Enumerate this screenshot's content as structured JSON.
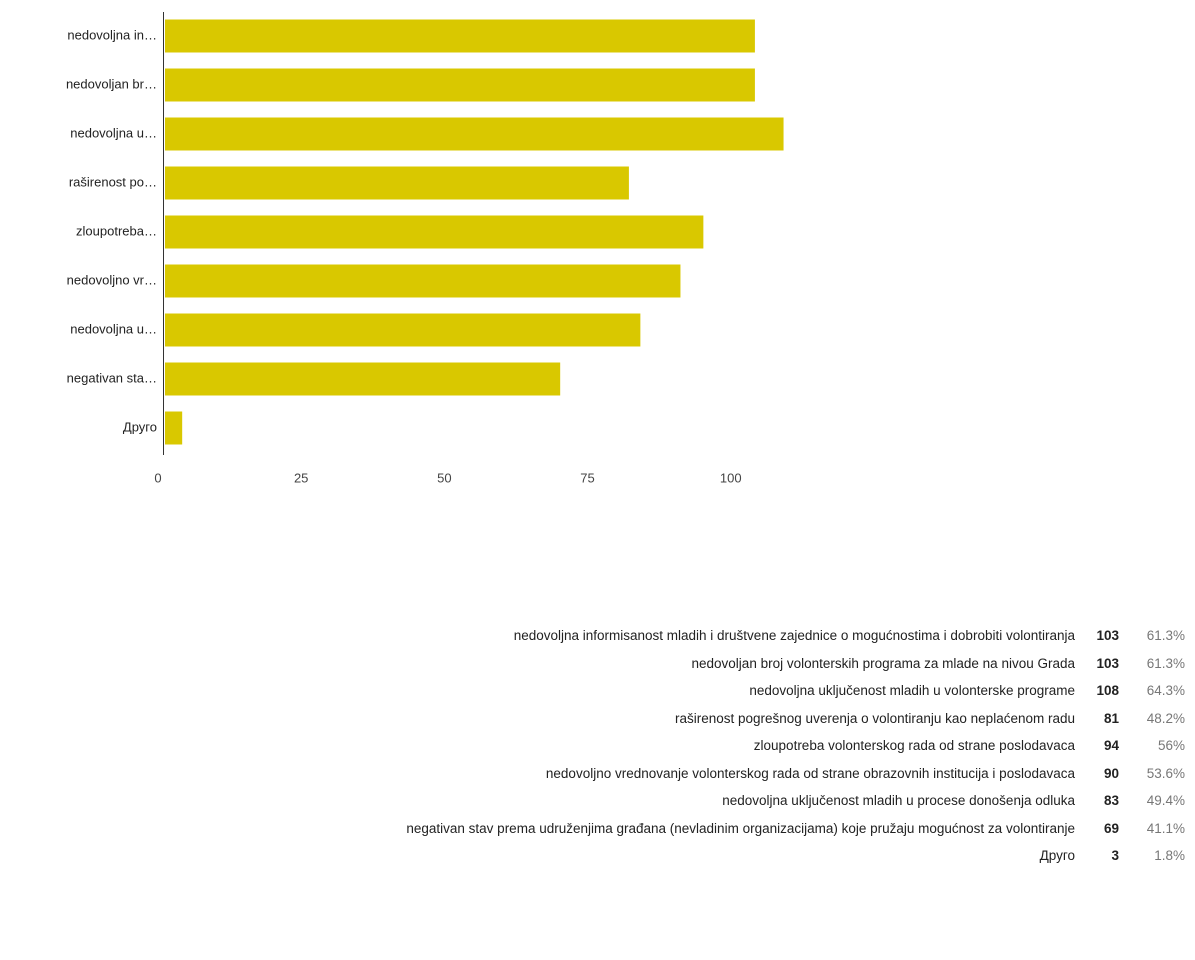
{
  "chart_data": {
    "type": "bar",
    "orientation": "horizontal",
    "color": "#d9c800",
    "categories": [
      "nedovoljna in…",
      "nedovoljan br…",
      "nedovoljna u…",
      "raširenost po…",
      "zloupotreba…",
      "nedovoljno vr…",
      "nedovoljna u…",
      "negativan sta…",
      "Друго"
    ],
    "values": [
      103,
      103,
      108,
      81,
      94,
      90,
      83,
      69,
      3
    ],
    "xlim": [
      0,
      110
    ],
    "xticks": [
      0,
      25,
      50,
      75,
      100
    ]
  },
  "table": {
    "rows": [
      [
        "nedovoljna informisanost mladih i društvene zajednice o mogućnostima i dobrobiti volontiranja",
        103,
        "61.3%"
      ],
      [
        "nedovoljan broj volonterskih programa za mlade na nivou Grada",
        103,
        "61.3%"
      ],
      [
        "nedovoljna uključenost mladih u volonterske programe",
        108,
        "64.3%"
      ],
      [
        "raširenost pogrešnog uverenja o volontiranju kao neplaćenom radu",
        81,
        "48.2%"
      ],
      [
        "zloupotreba volonterskog rada od strane poslodavaca",
        94,
        "56%"
      ],
      [
        "nedovoljno vrednovanje volonterskog rada od strane obrazovnih institucija i poslodavaca",
        90,
        "53.6%"
      ],
      [
        "nedovoljna uključenost mladih u procese donošenja odluka",
        83,
        "49.4%"
      ],
      [
        "negativan stav prema udruženjima građana (nevladinim organizacijama) koje pružaju mogućnost za volontiranje",
        69,
        "41.1%"
      ],
      [
        "Друго",
        3,
        "1.8%"
      ]
    ]
  }
}
